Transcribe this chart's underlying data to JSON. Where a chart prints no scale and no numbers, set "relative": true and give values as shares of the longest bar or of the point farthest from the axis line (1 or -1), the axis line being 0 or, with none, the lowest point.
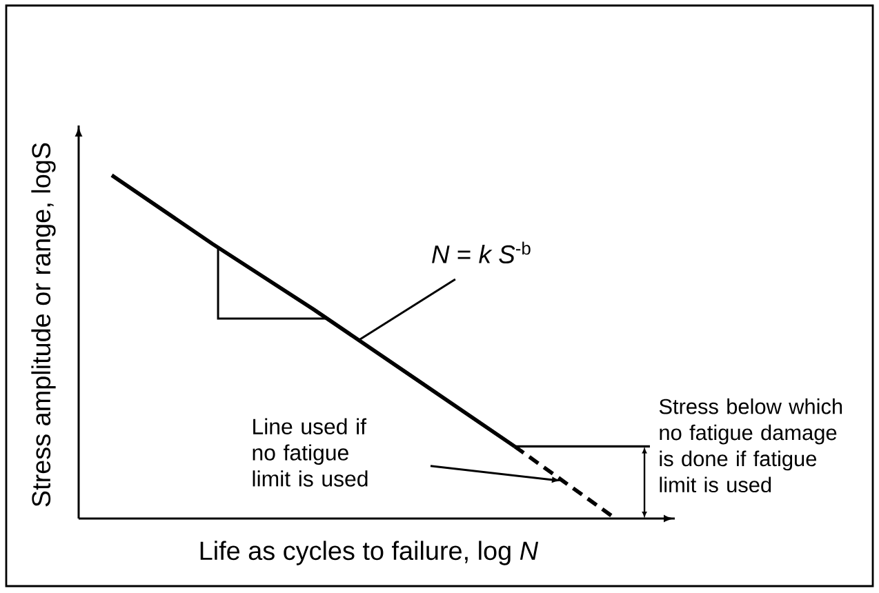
{
  "chart_data": {
    "type": "line",
    "relative": true,
    "xlabel": "Life as cycles to failure, log *N*",
    "ylabel": "Stress amplitude or range, logS",
    "categories": [
      null,
      null,
      null,
      null,
      null,
      null
    ],
    "series": [
      {
        "color": "#000000",
        "line_style": "solid",
        "values": [
          1,
          0.8,
          0.61,
          0.41,
          0.21,
          null
        ]
      },
      {
        "color": "#000000",
        "line_style": "dashed",
        "values": [
          null,
          null,
          null,
          null,
          0.21,
          0
        ]
      }
    ],
    "ref_lines": [
      {
        "axis": "y",
        "value": 0.21,
        "label": "Stress below which no fatigue damage is done if fatigue limit is used",
        "color": "#000000"
      }
    ],
    "annotations": [
      "*N* = *k S*$^{-b}$",
      "Line used if no fatigue limit is used"
    ]
  }
}
